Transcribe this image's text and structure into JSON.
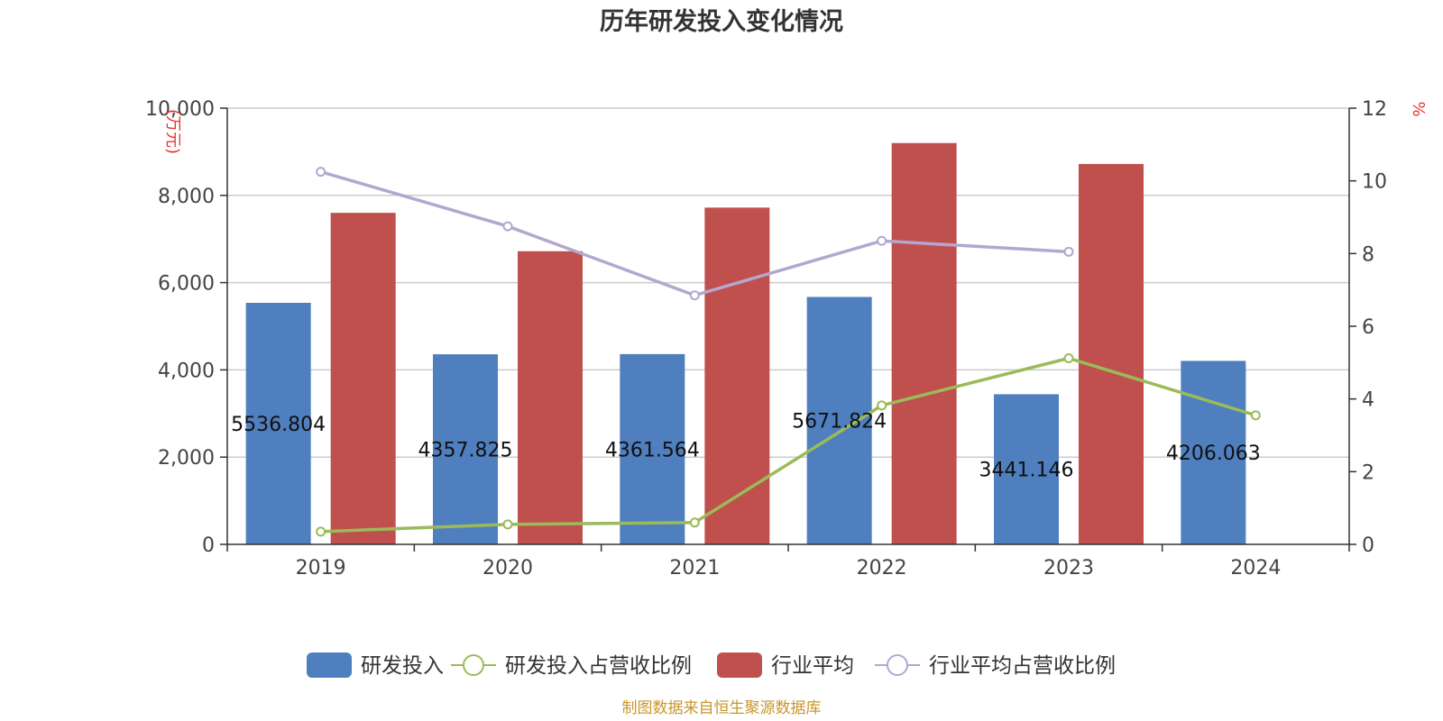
{
  "chart_data": {
    "type": "bar",
    "title": "历年研发投入变化情况",
    "categories": [
      "2019",
      "2020",
      "2021",
      "2022",
      "2023",
      "2024"
    ],
    "y_left": {
      "unit": "(万元)",
      "ylim": [
        0,
        10000
      ],
      "ticks": [
        0,
        2000,
        4000,
        6000,
        8000,
        10000
      ],
      "tick_labels": [
        "0",
        "2,000",
        "4,000",
        "6,000",
        "8,000",
        "10,000"
      ]
    },
    "y_right": {
      "unit": "%",
      "ylim": [
        0,
        12
      ],
      "ticks": [
        0,
        2,
        4,
        6,
        8,
        10,
        12
      ],
      "tick_labels": [
        "0",
        "2",
        "4",
        "6",
        "8",
        "10",
        "12"
      ]
    },
    "series": [
      {
        "name": "研发投入",
        "type": "bar",
        "axis": "left",
        "color": "#4f7fbe",
        "values": [
          5536.804,
          4357.825,
          4361.564,
          5671.824,
          3441.146,
          4206.063
        ],
        "labels": [
          "5536.804",
          "4357.825",
          "4361.564",
          "5671.824",
          "3441.146",
          "4206.063"
        ]
      },
      {
        "name": "研发投入占营收比例",
        "type": "line",
        "axis": "right",
        "color": "#9bbb59",
        "values": [
          0.35,
          0.55,
          0.6,
          3.82,
          5.12,
          3.55
        ]
      },
      {
        "name": "行业平均",
        "type": "bar",
        "axis": "left",
        "color": "#c0504d",
        "values": [
          7600,
          6720,
          7720,
          9200,
          8720,
          null
        ]
      },
      {
        "name": "行业平均占营收比例",
        "type": "line",
        "axis": "right",
        "color": "#b3a7cf",
        "values": [
          10.25,
          8.75,
          6.85,
          8.35,
          8.05,
          null
        ]
      }
    ],
    "legend_position": "bottom",
    "grid": true
  },
  "footer": {
    "source": "制图数据来自恒生聚源数据库"
  }
}
